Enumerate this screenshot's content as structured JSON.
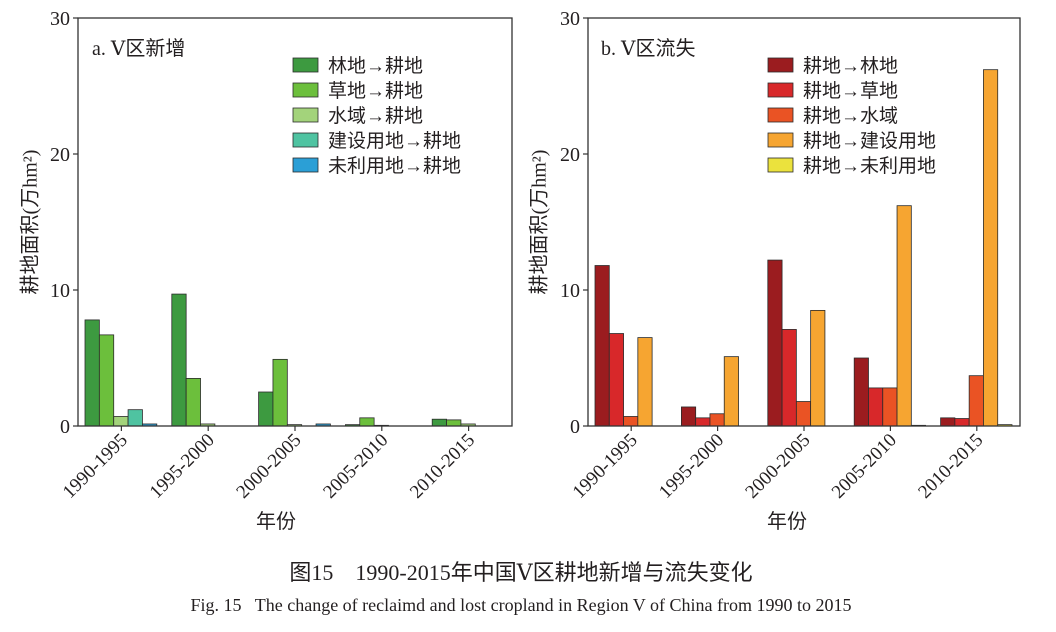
{
  "figure": {
    "caption_zh": "图15　1990-2015年中国Ⅴ区耕地新增与流失变化",
    "caption_en": "Fig. 15   The change of reclaimd and lost cropland in Region V of China from 1990 to 2015"
  },
  "chart_data": [
    {
      "type": "bar",
      "title": "a. Ⅴ区新增",
      "xlabel": "年份",
      "ylabel": "耕地面积(万hm²)",
      "ylim": [
        0,
        30
      ],
      "yticks": [
        0,
        10,
        20,
        30
      ],
      "grid": false,
      "legend_position": "top-right",
      "categories": [
        "1990-1995",
        "1995-2000",
        "2000-2005",
        "2005-2010",
        "2010-2015"
      ],
      "series": [
        {
          "name": "林地→耕地",
          "color": "#3d9a40",
          "values": [
            7.8,
            9.7,
            2.5,
            0.1,
            0.5
          ]
        },
        {
          "name": "草地→耕地",
          "color": "#6cbf3c",
          "values": [
            6.7,
            3.5,
            4.9,
            0.6,
            0.45
          ]
        },
        {
          "name": "水域→耕地",
          "color": "#a3d37b",
          "values": [
            0.7,
            0.15,
            0.1,
            0.05,
            0.15
          ]
        },
        {
          "name": "建设用地→耕地",
          "color": "#4fc3a1",
          "values": [
            1.2,
            0,
            0,
            0,
            0
          ]
        },
        {
          "name": "未利用地→耕地",
          "color": "#2b9fd6",
          "values": [
            0.15,
            0,
            0.15,
            0,
            0
          ]
        }
      ]
    },
    {
      "type": "bar",
      "title": "b. Ⅴ区流失",
      "xlabel": "年份",
      "ylabel": "耕地面积(万hm²)",
      "ylim": [
        0,
        30
      ],
      "yticks": [
        0,
        10,
        20,
        30
      ],
      "grid": false,
      "legend_position": "top-right",
      "categories": [
        "1990-1995",
        "1995-2000",
        "2000-2005",
        "2005-2010",
        "2010-2015"
      ],
      "series": [
        {
          "name": "耕地→林地",
          "color": "#9b1c1f",
          "values": [
            11.8,
            1.4,
            12.2,
            5.0,
            0.6
          ]
        },
        {
          "name": "耕地→草地",
          "color": "#d8282a",
          "values": [
            6.8,
            0.6,
            7.1,
            2.8,
            0.55
          ]
        },
        {
          "name": "耕地→水域",
          "color": "#ea5324",
          "values": [
            0.7,
            0.9,
            1.8,
            2.8,
            3.7
          ]
        },
        {
          "name": "耕地→建设用地",
          "color": "#f6a531",
          "values": [
            6.5,
            5.1,
            8.5,
            16.2,
            26.2
          ]
        },
        {
          "name": "耕地→未利用地",
          "color": "#ebe23d",
          "values": [
            0,
            0,
            0,
            0.05,
            0.1
          ]
        }
      ]
    }
  ]
}
